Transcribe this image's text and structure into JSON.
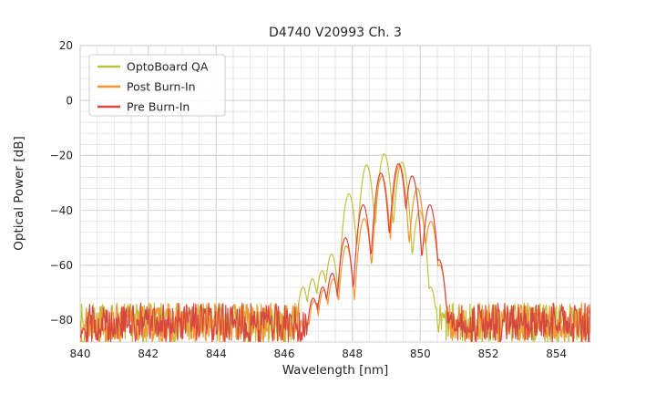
{
  "window": {
    "background": "#ffffff"
  },
  "chart_data": {
    "type": "line",
    "title": "D4740 V20993 Ch. 3",
    "xlabel": "Wavelength [nm]",
    "ylabel": "Optical Power [dB]",
    "xlim": [
      840,
      855
    ],
    "ylim": [
      -88,
      20
    ],
    "xticks": [
      840,
      842,
      844,
      846,
      848,
      850,
      852,
      854
    ],
    "yticks": [
      20,
      0,
      -20,
      -40,
      -60,
      -80
    ],
    "minor_x_step_nm": 0.5,
    "minor_y_step_db": 4,
    "grid": true,
    "grid_major_color": "#d9d9d9",
    "grid_minor_color": "#e6e6e6",
    "legend_position": "upper left",
    "noise_floor_db": {
      "min": -88.5,
      "max": -73.8
    },
    "lobe_curvature_db_per_nm2": 370,
    "sample_step_nm": 0.02,
    "series": [
      {
        "name": "OptoBoard QA",
        "color": "#bfc23e",
        "signal_range_nm": [
          846.3,
          850.4
        ],
        "peak_power_db": -19.5,
        "peak_wavelength_nm": 848.94,
        "mode_peaks": [
          [
            846.55,
            -68
          ],
          [
            846.83,
            -65
          ],
          [
            847.11,
            -62
          ],
          [
            847.39,
            -56
          ],
          [
            847.9,
            -34
          ],
          [
            848.42,
            -23.5
          ],
          [
            848.94,
            -19.5
          ],
          [
            849.46,
            -22.5
          ],
          [
            849.98,
            -40
          ],
          [
            850.3,
            -68
          ]
        ]
      },
      {
        "name": "Post Burn-In",
        "color": "#f79433",
        "signal_range_nm": [
          846.7,
          850.65
        ],
        "peak_power_db": -23.5,
        "peak_wavelength_nm": 849.39,
        "mode_peaks": [
          [
            846.88,
            -73
          ],
          [
            847.16,
            -69
          ],
          [
            847.44,
            -65
          ],
          [
            847.83,
            -53
          ],
          [
            848.35,
            -43
          ],
          [
            848.87,
            -27.5
          ],
          [
            849.39,
            -23.5
          ],
          [
            849.91,
            -32
          ],
          [
            850.31,
            -44
          ],
          [
            850.57,
            -60
          ]
        ]
      },
      {
        "name": "Pre Burn-In",
        "color": "#d6473f",
        "signal_range_nm": [
          846.7,
          850.65
        ],
        "peak_power_db": -23,
        "peak_wavelength_nm": 849.36,
        "mode_peaks": [
          [
            846.85,
            -72
          ],
          [
            847.13,
            -68
          ],
          [
            847.41,
            -63
          ],
          [
            847.8,
            -50
          ],
          [
            848.32,
            -38
          ],
          [
            848.84,
            -26.5
          ],
          [
            849.36,
            -23
          ],
          [
            849.76,
            -27.5
          ],
          [
            850.28,
            -38
          ],
          [
            850.55,
            -58
          ]
        ]
      }
    ]
  }
}
